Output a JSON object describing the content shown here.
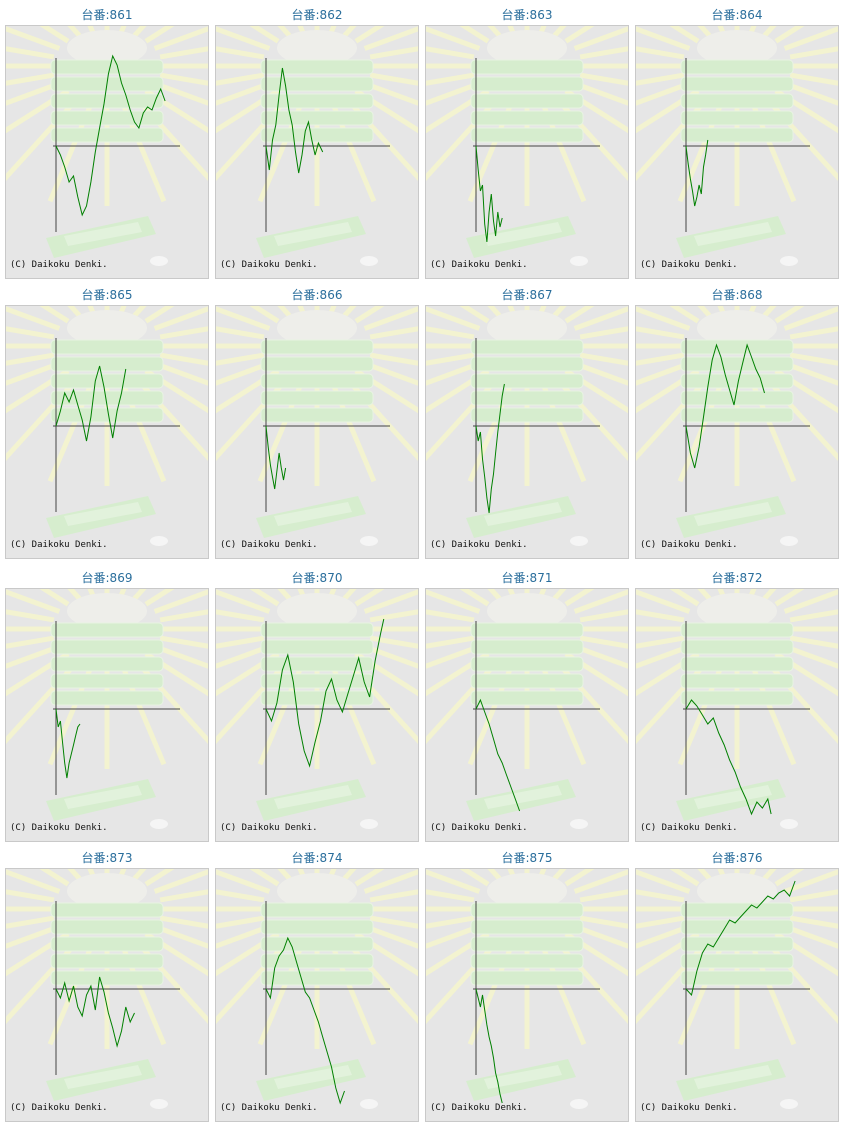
{
  "title_prefix": "台番:",
  "copyright": "(C) Daikoku Denki.",
  "colors": {
    "line": "#008000",
    "axis": "#444444",
    "title": "#2a6e9c",
    "panel": "#e6e6e6"
  },
  "chart_data": [
    {
      "type": "line",
      "title": "台番:861",
      "x": [
        0,
        4,
        8,
        12,
        16,
        20,
        24,
        28,
        32,
        36,
        40,
        44,
        48,
        52,
        56,
        60,
        64,
        68,
        72,
        76,
        80,
        84,
        88,
        92,
        96,
        100
      ],
      "y": [
        0,
        -300,
        -700,
        -1200,
        -1000,
        -1700,
        -2300,
        -2000,
        -1200,
        -200,
        600,
        1400,
        2400,
        3000,
        2700,
        2100,
        1700,
        1200,
        800,
        600,
        1100,
        1300,
        1200,
        1600,
        1900,
        1500
      ]
    },
    {
      "type": "line",
      "title": "台番:862",
      "x": [
        0,
        3,
        6,
        9,
        12,
        15,
        18,
        21,
        24,
        27,
        30,
        33,
        36,
        39,
        42,
        45,
        48,
        52
      ],
      "y": [
        0,
        -800,
        200,
        700,
        1700,
        2600,
        2000,
        1200,
        700,
        -200,
        -900,
        -300,
        500,
        800,
        200,
        -300,
        100,
        -200
      ]
    },
    {
      "type": "line",
      "title": "台番:863",
      "x": [
        0,
        2,
        4,
        6,
        8,
        10,
        12,
        14,
        16,
        18,
        20,
        22,
        24
      ],
      "y": [
        0,
        -800,
        -1500,
        -1300,
        -2600,
        -3200,
        -2200,
        -1600,
        -2500,
        -3000,
        -2200,
        -2700,
        -2400
      ]
    },
    {
      "type": "line",
      "title": "台番:864",
      "x": [
        0,
        2,
        4,
        6,
        8,
        10,
        12,
        14,
        16,
        18,
        20
      ],
      "y": [
        0,
        -600,
        -1100,
        -1500,
        -2000,
        -1700,
        -1300,
        -1600,
        -700,
        -300,
        200
      ]
    },
    {
      "type": "line",
      "title": "台番:865",
      "x": [
        0,
        4,
        8,
        12,
        16,
        20,
        24,
        28,
        32,
        36,
        40,
        44,
        48,
        52,
        56,
        60,
        64
      ],
      "y": [
        0,
        500,
        1100,
        800,
        1200,
        700,
        200,
        -500,
        300,
        1500,
        2000,
        1300,
        400,
        -400,
        500,
        1100,
        1900
      ]
    },
    {
      "type": "line",
      "title": "台番:866",
      "x": [
        0,
        2,
        4,
        6,
        8,
        10,
        12,
        14,
        16,
        18
      ],
      "y": [
        0,
        -700,
        -1300,
        -1700,
        -2100,
        -1500,
        -900,
        -1400,
        -1800,
        -1400
      ]
    },
    {
      "type": "line",
      "title": "台番:867",
      "x": [
        0,
        2,
        4,
        6,
        8,
        10,
        12,
        14,
        16,
        18,
        20,
        22,
        24,
        26
      ],
      "y": [
        0,
        -500,
        -200,
        -1100,
        -1700,
        -2400,
        -2900,
        -2100,
        -1600,
        -900,
        -200,
        400,
        1000,
        1400
      ]
    },
    {
      "type": "line",
      "title": "台番:868",
      "x": [
        0,
        4,
        8,
        12,
        16,
        20,
        24,
        28,
        32,
        36,
        40,
        44,
        48,
        52,
        56,
        60,
        64,
        68,
        72
      ],
      "y": [
        0,
        -900,
        -1400,
        -700,
        300,
        1300,
        2200,
        2700,
        2300,
        1700,
        1200,
        700,
        1500,
        2100,
        2700,
        2300,
        1900,
        1600,
        1100
      ]
    },
    {
      "type": "line",
      "title": "台番:869",
      "x": [
        0,
        2,
        4,
        6,
        8,
        10,
        12,
        14,
        16,
        18,
        20,
        22
      ],
      "y": [
        0,
        -600,
        -400,
        -1100,
        -1800,
        -2300,
        -1800,
        -1500,
        -1200,
        -900,
        -600,
        -500
      ]
    },
    {
      "type": "line",
      "title": "台番:870",
      "x": [
        0,
        5,
        10,
        15,
        20,
        25,
        30,
        35,
        40,
        45,
        50,
        55,
        60,
        65,
        70,
        75,
        80,
        85,
        90,
        95,
        100,
        105,
        108
      ],
      "y": [
        0,
        -400,
        200,
        1300,
        1800,
        900,
        -500,
        -1400,
        -1900,
        -1100,
        -400,
        600,
        1000,
        300,
        -100,
        500,
        1100,
        1700,
        900,
        400,
        1600,
        2500,
        3000
      ]
    },
    {
      "type": "line",
      "title": "台番:871",
      "x": [
        0,
        4,
        8,
        12,
        16,
        20,
        24,
        28,
        32,
        36,
        40
      ],
      "y": [
        0,
        300,
        -100,
        -500,
        -1000,
        -1500,
        -1800,
        -2200,
        -2600,
        -3000,
        -3400
      ]
    },
    {
      "type": "line",
      "title": "台番:872",
      "x": [
        0,
        5,
        10,
        15,
        20,
        25,
        30,
        35,
        40,
        45,
        50,
        55,
        60,
        65,
        70,
        75,
        78
      ],
      "y": [
        0,
        300,
        100,
        -200,
        -500,
        -300,
        -800,
        -1200,
        -1700,
        -2100,
        -2600,
        -3000,
        -3500,
        -3100,
        -3300,
        -3000,
        -3500
      ]
    },
    {
      "type": "line",
      "title": "台番:873",
      "x": [
        0,
        4,
        8,
        12,
        16,
        20,
        24,
        28,
        32,
        36,
        40,
        44,
        48,
        52,
        56,
        60,
        64,
        68,
        72
      ],
      "y": [
        0,
        -300,
        200,
        -400,
        100,
        -600,
        -900,
        -200,
        100,
        -700,
        400,
        -100,
        -800,
        -1300,
        -1900,
        -1400,
        -600,
        -1100,
        -800
      ]
    },
    {
      "type": "line",
      "title": "台番:874",
      "x": [
        0,
        4,
        8,
        12,
        16,
        20,
        24,
        28,
        32,
        36,
        40,
        44,
        48,
        52,
        56,
        60,
        64,
        68,
        72
      ],
      "y": [
        0,
        -300,
        700,
        1100,
        1300,
        1700,
        1400,
        900,
        400,
        -100,
        -300,
        -700,
        -1100,
        -1600,
        -2100,
        -2600,
        -3300,
        -3800,
        -3400
      ]
    },
    {
      "type": "line",
      "title": "台番:875",
      "x": [
        0,
        2,
        4,
        6,
        8,
        10,
        12,
        14,
        16,
        18,
        20,
        22,
        24
      ],
      "y": [
        0,
        -300,
        -600,
        -200,
        -700,
        -1200,
        -1600,
        -1900,
        -2300,
        -2800,
        -3100,
        -3500,
        -3800
      ]
    },
    {
      "type": "line",
      "title": "台番:876",
      "x": [
        0,
        5,
        10,
        15,
        20,
        25,
        30,
        35,
        40,
        45,
        50,
        55,
        60,
        65,
        70,
        75,
        80,
        85,
        90,
        95,
        100
      ],
      "y": [
        0,
        -200,
        600,
        1200,
        1500,
        1400,
        1700,
        2000,
        2300,
        2200,
        2400,
        2600,
        2800,
        2700,
        2900,
        3100,
        3000,
        3200,
        3300,
        3100,
        3600
      ]
    }
  ]
}
